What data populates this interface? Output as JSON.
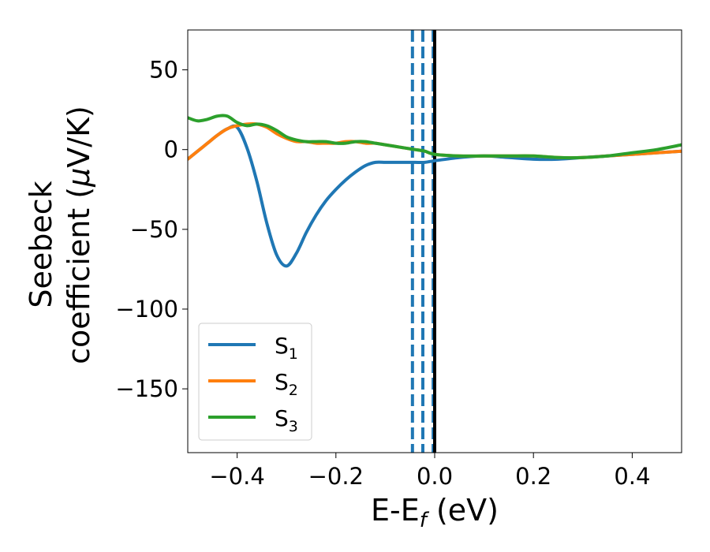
{
  "chart_data": {
    "type": "line",
    "xlabel_main": "E-E",
    "xlabel_sub": "f",
    "xlabel_unit": " (eV)",
    "ylabel_line1": "Seebeck",
    "ylabel_line2_text": "coefficient  (",
    "ylabel_line2_mu": "μ",
    "ylabel_line2_unit": "V/K)",
    "xlim": [
      -0.5,
      0.5
    ],
    "ylim": [
      -190,
      75
    ],
    "xticks": [
      -0.4,
      -0.2,
      0.0,
      0.2,
      0.4
    ],
    "xtick_labels": [
      "−0.4",
      "−0.2",
      "0.0",
      "0.2",
      "0.4"
    ],
    "yticks": [
      50,
      0,
      -50,
      -100,
      -150
    ],
    "ytick_labels": [
      "50",
      "0",
      "−50",
      "−100",
      "−150"
    ],
    "grid": false,
    "legend_placement": "lower-left",
    "series": [
      {
        "name": "S",
        "sub": "1",
        "color": "#1f77b4",
        "x": [
          -0.5,
          -0.48,
          -0.46,
          -0.44,
          -0.42,
          -0.4,
          -0.38,
          -0.36,
          -0.34,
          -0.32,
          -0.3,
          -0.28,
          -0.26,
          -0.24,
          -0.22,
          -0.2,
          -0.18,
          -0.16,
          -0.14,
          -0.12,
          -0.1,
          -0.08,
          -0.06,
          -0.04,
          -0.02,
          0.0,
          0.05,
          0.1,
          0.15,
          0.2,
          0.25,
          0.3,
          0.35,
          0.4,
          0.45,
          0.5
        ],
        "y": [
          -6,
          -1,
          4,
          9,
          13,
          14,
          1,
          -20,
          -46,
          -66,
          -73,
          -65,
          -52,
          -41,
          -32,
          -25,
          -19,
          -14,
          -10,
          -8,
          -8,
          -8,
          -8,
          -8,
          -8,
          -7,
          -5,
          -4,
          -5,
          -6,
          -6,
          -5,
          -4,
          -3,
          -2,
          -1
        ]
      },
      {
        "name": "S",
        "sub": "2",
        "color": "#ff7f0e",
        "x": [
          -0.5,
          -0.48,
          -0.46,
          -0.44,
          -0.42,
          -0.4,
          -0.38,
          -0.36,
          -0.34,
          -0.32,
          -0.3,
          -0.28,
          -0.26,
          -0.24,
          -0.22,
          -0.2,
          -0.18,
          -0.16,
          -0.14,
          -0.12,
          -0.1,
          -0.08,
          -0.06,
          -0.04,
          -0.02,
          0.0,
          0.05,
          0.1,
          0.15,
          0.2,
          0.25,
          0.3,
          0.35,
          0.4,
          0.45,
          0.5
        ],
        "y": [
          -6,
          -1,
          4,
          9,
          13,
          15,
          16,
          16,
          14,
          10,
          7,
          5,
          5,
          4,
          4,
          4,
          5,
          5,
          4,
          4,
          3,
          2,
          1,
          0,
          -1,
          -3,
          -4,
          -4,
          -4,
          -4,
          -5,
          -5,
          -4,
          -3,
          -2,
          -1
        ]
      },
      {
        "name": "S",
        "sub": "3",
        "color": "#2ca02c",
        "x": [
          -0.5,
          -0.48,
          -0.46,
          -0.44,
          -0.42,
          -0.4,
          -0.38,
          -0.36,
          -0.34,
          -0.32,
          -0.3,
          -0.28,
          -0.26,
          -0.24,
          -0.22,
          -0.2,
          -0.18,
          -0.16,
          -0.14,
          -0.12,
          -0.1,
          -0.08,
          -0.06,
          -0.04,
          -0.02,
          0.0,
          0.05,
          0.1,
          0.15,
          0.2,
          0.25,
          0.3,
          0.35,
          0.4,
          0.45,
          0.5
        ],
        "y": [
          20,
          18,
          19,
          21,
          21,
          17,
          15,
          16,
          15,
          12,
          8,
          6,
          5,
          5,
          5,
          4,
          4,
          5,
          5,
          4,
          3,
          2,
          1,
          0,
          -1,
          -3,
          -4,
          -4,
          -4,
          -4,
          -5,
          -5,
          -4,
          -2,
          0,
          3
        ]
      }
    ],
    "vlines": [
      {
        "x": -0.045,
        "color": "#1f77b4",
        "style": "dashed"
      },
      {
        "x": -0.024,
        "color": "#1f77b4",
        "style": "dashed"
      },
      {
        "x": -0.003,
        "color": "#1f77b4",
        "style": "dashed"
      },
      {
        "x": 0.0,
        "color": "#000000",
        "style": "solid"
      }
    ]
  }
}
